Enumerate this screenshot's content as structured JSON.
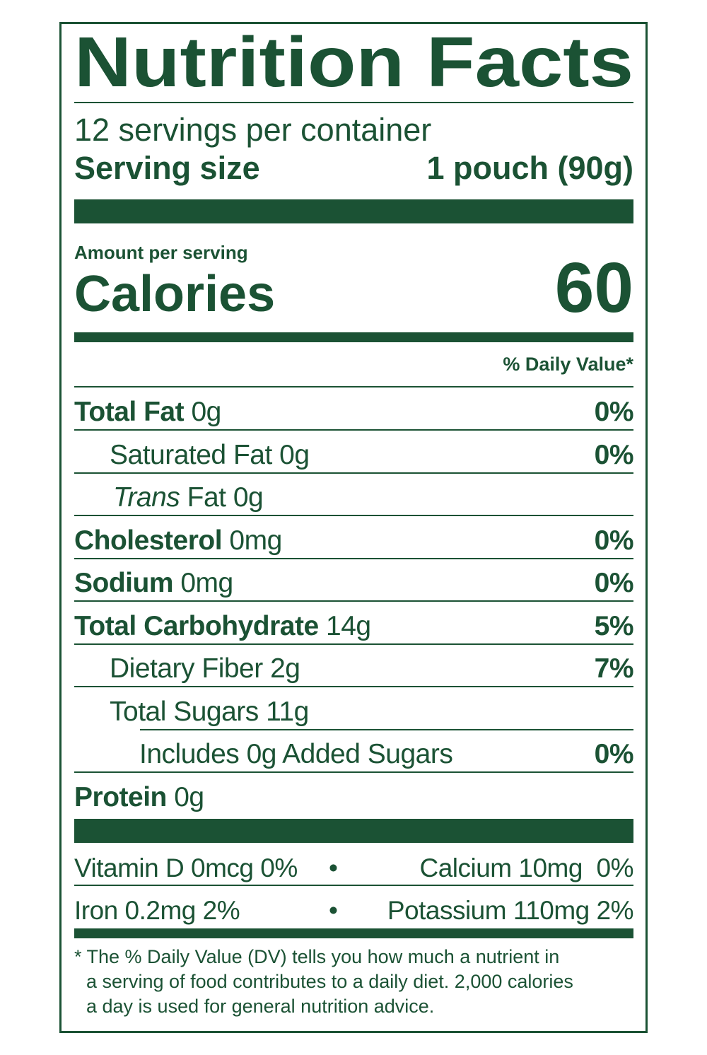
{
  "color": "#1b5234",
  "title": "Nutrition Facts",
  "servings_per_container": "12 servings per container",
  "serving_size_label": "Serving size",
  "serving_size_value": "1 pouch (90g)",
  "amount_per_serving": "Amount per serving",
  "calories_label": "Calories",
  "calories_value": "60",
  "daily_value_header": "% Daily Value*",
  "nutrients": [
    {
      "name": "Total Fat",
      "amount": "0g",
      "dv": "0%"
    },
    {
      "name": "Saturated Fat",
      "amount": "0g",
      "dv": "0%"
    },
    {
      "name": "Trans",
      "name_rest": "Fat",
      "amount": "0g",
      "dv": ""
    },
    {
      "name": "Cholesterol",
      "amount": "0mg",
      "dv": "0%"
    },
    {
      "name": "Sodium",
      "amount": "0mg",
      "dv": "0%"
    },
    {
      "name": "Total Carbohydrate",
      "amount": "14g",
      "dv": "5%"
    },
    {
      "name": "Dietary Fiber",
      "amount": "2g",
      "dv": "7%"
    },
    {
      "name": "Total Sugars",
      "amount": "11g",
      "dv": ""
    },
    {
      "name": "Includes 0g Added Sugars",
      "amount": "",
      "dv": "0%"
    },
    {
      "name": "Protein",
      "amount": "0g",
      "dv": ""
    }
  ],
  "vitamins": [
    {
      "left": "Vitamin D 0mcg 0%",
      "right": "Calcium 10mg  0%"
    },
    {
      "left": "Iron 0.2mg 2%",
      "right": "Potassium 110mg 2%"
    }
  ],
  "bullet": "•",
  "footnote": [
    "* The % Daily Value (DV) tells you how much a nutrient in",
    "a serving of food contributes to a daily diet. 2,000 calories",
    "a day is used for general nutrition advice."
  ]
}
